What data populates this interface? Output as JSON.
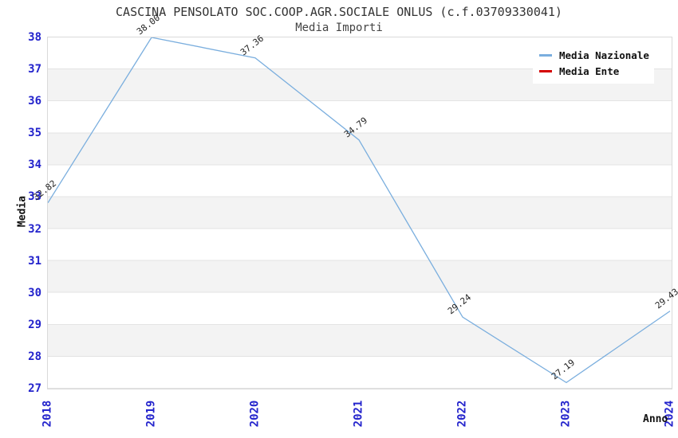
{
  "header": {
    "title": "CASCINA PENSOLATO SOC.COOP.AGR.SOCIALE ONLUS (c.f.03709330041)",
    "subtitle": "Media Importi"
  },
  "axes": {
    "ylabel": "Media",
    "xlabel": "Anno",
    "ytick_labels": [
      "38",
      "37",
      "36",
      "35",
      "34",
      "33",
      "32",
      "31",
      "30",
      "29",
      "28",
      "27"
    ],
    "xtick_labels": [
      "2018",
      "2019",
      "2020",
      "2021",
      "2022",
      "2023",
      "2024"
    ]
  },
  "legend": {
    "items": [
      {
        "label": "Media Nazionale",
        "color": "#7aaede"
      },
      {
        "label": "Media Ente",
        "color": "#d40000"
      }
    ]
  },
  "chart_data": {
    "type": "line",
    "title": "CASCINA PENSOLATO SOC.COOP.AGR.SOCIALE ONLUS (c.f.03709330041)",
    "subtitle": "Media Importi",
    "xlabel": "Anno",
    "ylabel": "Media",
    "x": [
      2018,
      2019,
      2020,
      2021,
      2022,
      2023,
      2024
    ],
    "series": [
      {
        "name": "Media Nazionale",
        "color": "#7aaede",
        "values": [
          32.82,
          38.0,
          37.36,
          34.79,
          29.24,
          27.19,
          29.43
        ],
        "point_labels": [
          "32.82",
          "38.00",
          "37.36",
          "34.79",
          "29.24",
          "27.19",
          "29.43"
        ]
      },
      {
        "name": "Media Ente",
        "color": "#d40000",
        "values": []
      }
    ],
    "ylim": [
      27,
      38
    ],
    "yticks": [
      27,
      28,
      29,
      30,
      31,
      32,
      33,
      34,
      35,
      36,
      37,
      38
    ],
    "grid": "horizontal-bands",
    "legend_position": "top-right",
    "tick_color": "#2323cc",
    "band_color": "#f3f3f3",
    "gridline_color": "#e3e3e3"
  }
}
